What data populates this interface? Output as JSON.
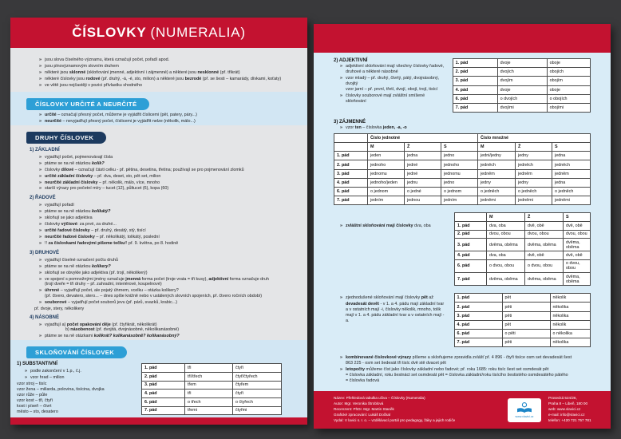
{
  "colors": {
    "red": "#c31230",
    "pill_dark_blue": "#1c3a5f",
    "pill_light_blue": "#2d9fd6",
    "section_gray": "#e4e5e7",
    "section_blue": "#d2e6f3",
    "page_blue": "#d9ecf7"
  },
  "left_page": {
    "title_bold": "ČÍSLOVKY",
    "title_normal": "(NUMERALIA)",
    "intro_bullets": [
      "jsou slova číselného významu, která označují počet, pořadí apod.",
      "jsou plnovýznamovým slovním druhem",
      "některé jsou <b>sklonné</b> (skloňování jmenné, adjektivní i zájmenné) a některé jsou <b>nesklonné</b> (př. třikrát)",
      "některé číslovky jsou <b>rodové</b> (př. druhý, -á, -é, sto, milion) a některé jsou <b>bezrodé</b> (př. se šesti – kamarády, dívkami, koťaty)",
      "ve větě jsou nejčastěji v pozici přívlastku shodného"
    ],
    "urcite": {
      "header": "ČÍSLOVKY URČITÉ A NEURČITÉ",
      "bullets": [
        "<b>určité</b> – označují přesný počet, můžeme je vyjádřit číslicemi (pět, patery, páry...)",
        "<b>neurčité</b> – nevyjadřují přesný počet, číslicemi je vyjádřit nelze (několik, málo...)"
      ]
    },
    "druhy": {
      "header": "DRUHY ČÍSLOVEK",
      "sub1_title": "1) ZÁKLADNÍ",
      "sub1_bullets": [
        "vyjadřují počet, pojmenovávají čísla",
        "ptáme se na ně otázkou <b><i>kolik?</i></b>",
        "číslovky <b>dílové</b> – označují části celku - př. pětina, desetina, třetina; používají se pro pojmenování zlomků",
        "<b>určité základní číslovky</b> – př. dva, deset, sto, pět set, milion",
        "<b>neurčité základní číslovky</b> – př. několik, málo, více, mnoho",
        "starší výrazy pro početní míry – tucet (12), půltucet (6), kopa (60)"
      ],
      "sub2_title": "2) ŘADOVÉ",
      "sub2_bullets": [
        "vyjadřují pořadí",
        "ptáme se na ně otázkou <b><i>kolikátý?</i></b>",
        "skloňují se jako adjektiva",
        "číslovky <b>výčtové</b>: za prvé, za druhé...",
        "<b>určité řadové číslovky</b> – př. druhý, desátý, stý, tisící",
        "<b>neurčité řadové číslovky</b> – př. několikátý, tolikátý, poslední",
        "!! <b>za číslovkami řadovými píšeme tečku</b>!! př. 9. května, po 8. hodině"
      ],
      "sub3_title": "3) DRUHOVÉ",
      "sub3_bullets": [
        "vyjadřují číselné označení počtu druhů",
        "ptáme se na ně otázkou <b><i>kolikery?</i></b>",
        "skloňují se obvykle jako adjektiva (př. trojí, několikerý)",
        "ve spojení s pomnožnými jmény označuje <b>jmenná</b> forma počet (troje vrata = tři kusy), <b>adjektivní</b> forma označuje druh<br>(trojí dveře = tři druhy – př. zahradní, interiérové, koupelnové)",
        "<b>úhrnné</b> – vyjadřují počet, ale pojatý úhrnem, vcelku – otázka kolikery?<br>(př. čtvero, devatero, stero... – dnes spíše knižně nebo v ustálených slovních spojeních, př. čtvero ročních období)",
        "<b>souborové</b> – vyjadřují počet souborů jevu (př. párů, svazků, krabic...)"
      ],
      "sub3_note": "př. dvoje, stery, několikery",
      "sub4_title": "4) NÁSOBNÉ",
      "sub4_bullets": [
        "vyjadřují a) <b>počet opakování děje</b> (př. čtyřikrát, několikrát)<br><span class=\"ind\">b) <b>násobenost</b> (př. dvojitá, dvojnásobné, několikanásobné)</span>",
        "ptáme se na ně otázkami <b><i>kolikrát? kolikanásobně? kolikanásobný?</i></b>"
      ]
    },
    "sklonovani": {
      "header": "SKLOŇOVÁNÍ ČÍSLOVEK",
      "sub_title": "1) SUBSTANTIVNÍ",
      "bullets": [
        "podle zakončení v 1.p., č.j.",
        "vzor hrad – milion"
      ],
      "lines": "vzor stroj – tisíc<br>vzor žena – miliarda, polovina, tisícina, dvojka<br>vzor růže – půle<br>vzor kost – tři, čtyři<br>kost i píseň – čtvrt<br>město – sto, desatero",
      "table_rows": [
        [
          "1. pád",
          "tři",
          "čtyři"
        ],
        [
          "2. pád",
          "tří/třech",
          "čtyř/čtyřech"
        ],
        [
          "3. pád",
          "třem",
          "čtyřem"
        ],
        [
          "4. pád",
          "tři",
          "čtyři"
        ],
        [
          "6. pád",
          "o třech",
          "o čtyřech"
        ],
        [
          "7. pád",
          "třemi",
          "čtyřmi"
        ]
      ]
    }
  },
  "right_page": {
    "adjektivni": {
      "title": "2) ADJEKTIVNÍ",
      "bullets": [
        "adjektivní skloňování mají všechny číslovky řadové, druhové a některé násobné",
        "vzor mladý – př. druhý, čtvrtý, pátý, dvojnásobný, dvojitý<br>vzor jarní – př. první, třetí, dvojí, obojí, trojí, tisící",
        "číslovky souborové mají zvláštní smíšené skloňování"
      ],
      "table_rows": [
        [
          "1. pád",
          "dvoje",
          "oboje"
        ],
        [
          "2. pád",
          "dvojích",
          "obojích"
        ],
        [
          "3. pád",
          "dvojím",
          "obojím"
        ],
        [
          "4. pád",
          "dvoje",
          "oboje"
        ],
        [
          "6. pád",
          "o dvojích",
          "o obojích"
        ],
        [
          "7. pád",
          "dvojími",
          "obojími"
        ]
      ]
    },
    "zajmenne": {
      "title": "3) ZÁJMENNÉ",
      "bullet": "vzor <b>ten</b> – číslovka <b>jeden, -a, -o</b>",
      "jeden_table": {
        "group_headers": [
          "Číslo jednotné",
          "Číslo množné"
        ],
        "col_headers": [
          "M",
          "Ž",
          "S",
          "M",
          "Ž",
          "S"
        ],
        "rows": [
          [
            "1. pád",
            "jeden",
            "jedna",
            "jedno",
            "jedni/jedny",
            "jedny",
            "jedna"
          ],
          [
            "2. pád",
            "jednoho",
            "jedné",
            "jednoho",
            "jedněch",
            "jedněch",
            "jedněch"
          ],
          [
            "3. pád",
            "jednomu",
            "jedné",
            "jednomu",
            "jedněm",
            "jedněm",
            "jedněm"
          ],
          [
            "4. pád",
            "jednoho/jeden",
            "jednu",
            "jedno",
            "jedny",
            "jedny",
            "jedna"
          ],
          [
            "6. pád",
            "o jednom",
            "o jedné",
            "o jednom",
            "o jedněch",
            "o jedněch",
            "o jedněch"
          ],
          [
            "7. pád",
            "jedním",
            "jednou",
            "jedním",
            "jedněmi",
            "jedněmi",
            "jedněmi"
          ]
        ]
      },
      "dva_bullet": "<b>zvláštní skloňování mají číslovky</b> dva, oba",
      "dva_table": {
        "col_headers": [
          "M",
          "Ž",
          "S"
        ],
        "rows": [
          [
            "1. pád",
            "dva, oba",
            "dvě, obě",
            "dvě, obě"
          ],
          [
            "2. pád",
            "dvou, obou",
            "dvou, obou",
            "dvou, obou"
          ],
          [
            "3. pád",
            "dvěma, oběma",
            "dvěma, oběma",
            "dvěma, oběma"
          ],
          [
            "4. pád",
            "dva, oba",
            "dvě, obě",
            "dvě, obě"
          ],
          [
            "6. pád",
            "o dvou, obou",
            "o dvou, obou",
            "o dvou, obou"
          ],
          [
            "7. pád",
            "dvěma, oběma",
            "dvěma, oběma",
            "dvěma, oběma"
          ]
        ]
      },
      "pet_bullet": "zjednodušené skloňování mají číslovky <b>pět</b> až <b>devadesát devět</b> - v 1. a 4. pádu mají základní tvar a v ostatních mají -i, číslovky několik, mnoho, tolik mají v 1. a 4. pádu základní tvar a v ostatních mají -a.",
      "pet_table_rows": [
        [
          "1. pád",
          "pět",
          "několik"
        ],
        [
          "2. pád",
          "pěti",
          "několika"
        ],
        [
          "3. pád",
          "pěti",
          "několika"
        ],
        [
          "4. pád",
          "pět",
          "několik"
        ],
        [
          "6. pád",
          "o pěti",
          "o několika"
        ],
        [
          "7. pád",
          "pěti",
          "několika"
        ]
      ],
      "extra_bullets": [
        "<b>kombinované číslovkové výrazy</b> píšeme a skloňujeme zpravidla zvlášť př. 4 896 - čtyři tisíce osm set devadesát šest<br>863 225 - osm set šedesát tři tisíc dvě stě dvacet pět",
        "<b>letopočty</b> můžeme číst jako číslovky základní nebo řadové; př. roku 1685: roku tisíc šest set osmdesát pět<br>= číslovka základní, roku šestnáct set osmdesát pět = číslovka základní/roku tisícího šestistého osmdesátého pátého<br>= číslovka řadová"
      ]
    },
    "footer": {
      "left_lines": "Název: Přehledová tabulka učiva – Číslovky (Numeralia)<br>Autor: Mgr. Veronika Štroblová<br>Recenzent: PhDr. Mgr. Martin Staněk<br>Grafické zpracování: Lukáš Dočkal<br>Vydal: V lavici s. r. o. – vzdělávací portál pro pedagogy, žáky a jejich rodiče",
      "logo_url": "www.vlavici.cz",
      "right_lines": "Prosecká 524/26,<br>Praha 8 – Libeň, 180 00<br>web: www.vlavici.cz<br>e-mail: info@vlavici.cz<br>telefon: +420 721 757 781"
    }
  }
}
